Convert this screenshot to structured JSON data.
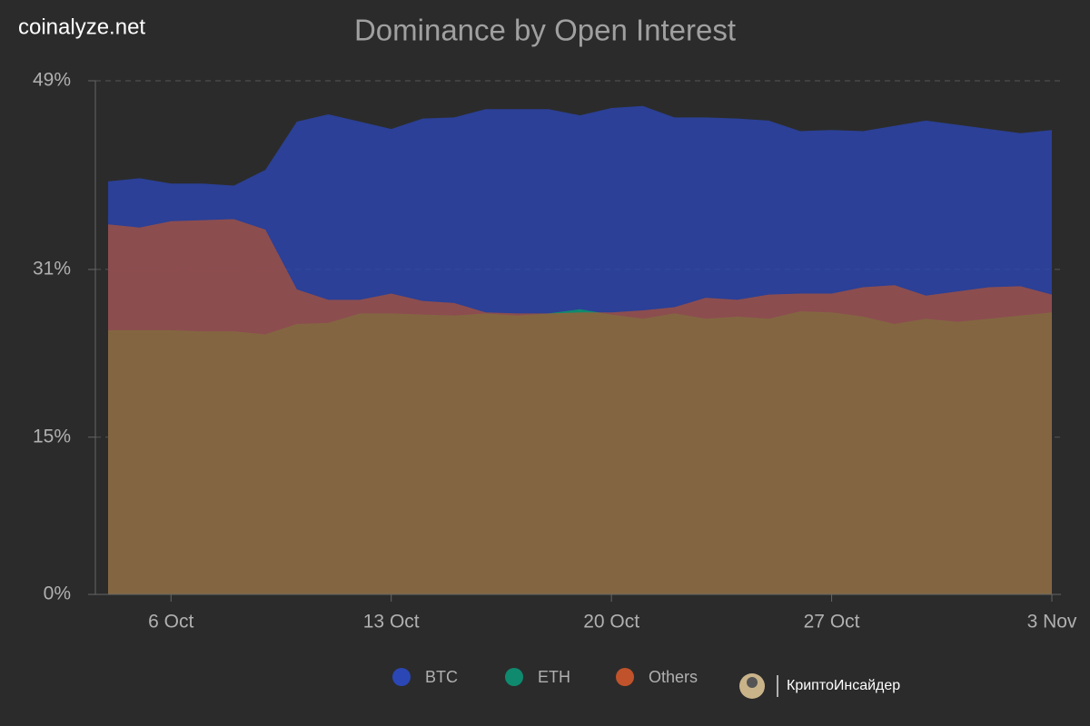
{
  "watermark": "coinalyze.net",
  "credit": "КриптоИнсайдер",
  "chart_data": {
    "type": "area",
    "title": "Dominance by Open Interest",
    "categories": [
      null,
      null,
      "6 Oct",
      null,
      null,
      null,
      null,
      null,
      null,
      "13 Oct",
      null,
      null,
      null,
      null,
      null,
      null,
      "20 Oct",
      null,
      null,
      null,
      null,
      null,
      null,
      "27 Oct",
      null,
      null,
      null,
      null,
      null,
      null,
      "3 Nov"
    ],
    "series": [
      {
        "name": "BTC",
        "color": "#2b47b5",
        "values": [
          39.4,
          39.7,
          39.2,
          39.2,
          39.0,
          40.5,
          45.1,
          45.8,
          45.1,
          44.4,
          45.4,
          45.5,
          46.3,
          46.3,
          46.3,
          45.7,
          46.4,
          46.6,
          45.5,
          45.5,
          45.4,
          45.2,
          44.2,
          44.3,
          44.2,
          44.7,
          45.2,
          44.8,
          44.4,
          44.0,
          44.3
        ]
      },
      {
        "name": "ETH",
        "color": "#0f8a6e",
        "values": [
          25.2,
          25.2,
          25.2,
          25.1,
          25.1,
          24.8,
          25.8,
          25.9,
          26.8,
          26.8,
          26.7,
          26.6,
          26.8,
          26.6,
          26.8,
          27.2,
          26.7,
          26.3,
          26.8,
          26.3,
          26.5,
          26.3,
          27.0,
          26.9,
          26.5,
          25.8,
          26.3,
          26.0,
          26.3,
          26.6,
          26.9
        ]
      },
      {
        "name": "Others",
        "color": "#c0532b",
        "values": [
          35.3,
          35.0,
          35.6,
          35.7,
          35.8,
          34.8,
          29.1,
          28.1,
          28.1,
          28.7,
          28.0,
          27.8,
          26.9,
          26.8,
          26.8,
          26.9,
          26.9,
          27.1,
          27.4,
          28.3,
          28.1,
          28.6,
          28.7,
          28.7,
          29.3,
          29.5,
          28.5,
          28.9,
          29.3,
          29.4,
          28.6
        ]
      }
    ],
    "ylim": [
      0,
      49
    ],
    "yticks": [
      {
        "value": 0,
        "label": "0%"
      },
      {
        "value": 15,
        "label": "15%"
      },
      {
        "value": 31,
        "label": "31%"
      },
      {
        "value": 49,
        "label": "49%"
      }
    ],
    "grid": true
  }
}
